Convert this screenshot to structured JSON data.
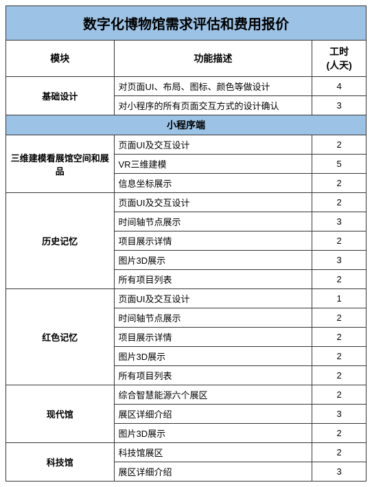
{
  "title": "数字化博物馆需求评估和费用报价",
  "headers": {
    "module": "模块",
    "desc": "功能描述",
    "hours": "工时\n(人天)"
  },
  "colors": {
    "header_bg": "#9cc2e5",
    "border": "#333333",
    "background": "#ffffff"
  },
  "font": {
    "title_size": 20,
    "header_size": 14,
    "cell_size": 13
  },
  "modules_top": [
    {
      "name": "基础设计",
      "rows": [
        {
          "desc": "对页面UI、布局、图标、颜色等做设计",
          "hours": 4
        },
        {
          "desc": "对小程序的所有页面交互方式的设计确认",
          "hours": 3
        }
      ]
    }
  ],
  "section1": "小程序端",
  "modules_section1": [
    {
      "name": "三维建模看展馆空间和展品",
      "rows": [
        {
          "desc": "页面UI及交互设计",
          "hours": 2
        },
        {
          "desc": "VR三维建模",
          "hours": 5
        },
        {
          "desc": "信息坐标展示",
          "hours": 2
        }
      ]
    },
    {
      "name": "历史记忆",
      "rows": [
        {
          "desc": "页面UI及交互设计",
          "hours": 2
        },
        {
          "desc": "时间轴节点展示",
          "hours": 3
        },
        {
          "desc": "项目展示详情",
          "hours": 2
        },
        {
          "desc": "图片3D展示",
          "hours": 3
        },
        {
          "desc": "所有项目列表",
          "hours": 2
        }
      ]
    },
    {
      "name": "红色记忆",
      "rows": [
        {
          "desc": "页面UI及交互设计",
          "hours": 1
        },
        {
          "desc": "时间轴节点展示",
          "hours": 2
        },
        {
          "desc": "项目展示详情",
          "hours": 2
        },
        {
          "desc": "图片3D展示",
          "hours": 2
        },
        {
          "desc": "所有项目列表",
          "hours": 2
        }
      ]
    },
    {
      "name": "现代馆",
      "rows": [
        {
          "desc": "综合智慧能源六个展区",
          "hours": 2
        },
        {
          "desc": "展区详细介绍",
          "hours": 3
        },
        {
          "desc": "图片3D展示",
          "hours": 2
        }
      ]
    },
    {
      "name": "科技馆",
      "rows": [
        {
          "desc": "科技馆展区",
          "hours": 2
        },
        {
          "desc": "展区详细介绍",
          "hours": 3
        }
      ]
    }
  ]
}
